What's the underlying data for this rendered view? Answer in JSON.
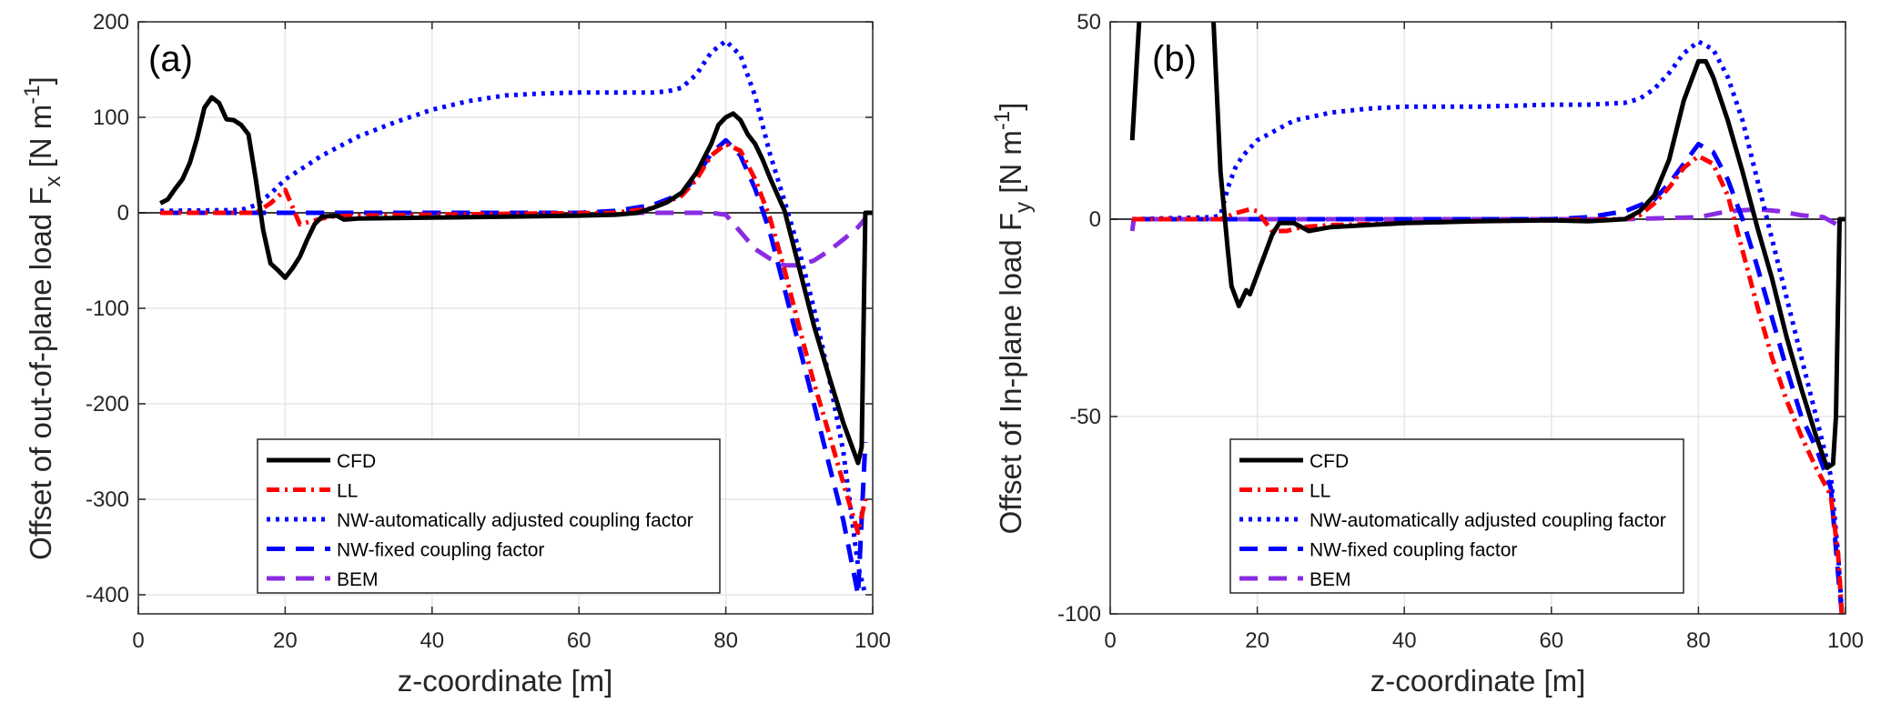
{
  "figure": {
    "panels": [
      "(a)",
      "(b)"
    ]
  },
  "chart_data": [
    {
      "type": "line",
      "panel_label": "(a)",
      "title": "",
      "xlabel": "z-coordinate [m]",
      "ylabel": "Offset of out-of-plane load F_x [N m^-1]",
      "ylabel_parts": {
        "main": "Offset of out-of-plane load F",
        "sub": "x",
        "unit_pre": " [N m",
        "sup": "-1",
        "unit_post": "]"
      },
      "xlim": [
        0,
        100
      ],
      "ylim": [
        -420,
        200
      ],
      "xticks": [
        0,
        20,
        40,
        60,
        80,
        100
      ],
      "yticks": [
        -400,
        -300,
        -200,
        -100,
        0,
        100,
        200
      ],
      "xtick_labels": [
        "0",
        "20",
        "40",
        "60",
        "80",
        "100"
      ],
      "ytick_labels": [
        "-400",
        "-300",
        "-200",
        "-100",
        "0",
        "100",
        "200"
      ],
      "grid": true,
      "zero_line": true,
      "legend_position": "bottom-center",
      "series": [
        {
          "name": "CFD",
          "color": "#000000",
          "style": "solid",
          "x": [
            3,
            4,
            5,
            6,
            7,
            8,
            9,
            10,
            11,
            12,
            13,
            14,
            15,
            16,
            17,
            18,
            19,
            20,
            21,
            22,
            23,
            24,
            25,
            27,
            28,
            30,
            40,
            50,
            60,
            65,
            68,
            70,
            72,
            74,
            76,
            78,
            79,
            80,
            81,
            82,
            83,
            84,
            85,
            86,
            88,
            90,
            92,
            94,
            96,
            98,
            98.5,
            99,
            100
          ],
          "y": [
            10,
            14,
            25,
            35,
            52,
            78,
            110,
            121,
            115,
            98,
            97,
            92,
            82,
            35,
            -18,
            -53,
            -60,
            -68,
            -58,
            -46,
            -28,
            -12,
            -4,
            -3,
            -7,
            -6,
            -5,
            -4,
            -3,
            -2,
            0,
            5,
            11,
            21,
            42,
            72,
            92,
            100,
            104,
            97,
            82,
            72,
            56,
            37,
            2,
            -58,
            -118,
            -170,
            -220,
            -262,
            -245,
            0,
            0
          ]
        },
        {
          "name": "LL",
          "color": "#ff0000",
          "style": "dashdot",
          "x": [
            3,
            16,
            18,
            20,
            22,
            24,
            26,
            30,
            50,
            65,
            70,
            74,
            76,
            78,
            80,
            82,
            84,
            86,
            88,
            90,
            92,
            94,
            96,
            98,
            99
          ],
          "y": [
            0,
            0,
            10,
            24,
            -12,
            -8,
            -4,
            -3,
            -1,
            0,
            5,
            18,
            35,
            60,
            72,
            65,
            35,
            -5,
            -60,
            -120,
            -178,
            -230,
            -283,
            -335,
            -300
          ]
        },
        {
          "name": "NW-automatically adjusted coupling factor",
          "color": "#0000ff",
          "style": "dotted",
          "x": [
            3,
            14,
            16,
            18,
            20,
            25,
            30,
            35,
            40,
            45,
            50,
            55,
            60,
            65,
            70,
            72,
            74,
            76,
            78,
            80,
            82,
            84,
            86,
            88,
            90,
            92,
            94,
            96,
            98,
            99
          ],
          "y": [
            2,
            3,
            8,
            20,
            35,
            60,
            80,
            95,
            108,
            117,
            123,
            125,
            126,
            126,
            126,
            127,
            131,
            145,
            168,
            180,
            165,
            122,
            62,
            12,
            -40,
            -100,
            -170,
            -250,
            -370,
            -400
          ]
        },
        {
          "name": "NW-fixed coupling factor",
          "color": "#0000ff",
          "style": "longdash",
          "x": [
            3,
            16,
            20,
            30,
            50,
            60,
            65,
            70,
            74,
            76,
            78,
            80,
            82,
            84,
            86,
            88,
            90,
            92,
            94,
            96,
            98,
            99
          ],
          "y": [
            0,
            0,
            0,
            0,
            0,
            0,
            2,
            8,
            20,
            38,
            62,
            76,
            60,
            25,
            -20,
            -80,
            -140,
            -200,
            -262,
            -322,
            -400,
            -240
          ]
        },
        {
          "name": "BEM",
          "color": "#8a2be2",
          "style": "longdash",
          "x": [
            3,
            78,
            80,
            82,
            84,
            86,
            88,
            90,
            92,
            94,
            96,
            98,
            99
          ],
          "y": [
            0,
            0,
            -2,
            -20,
            -38,
            -48,
            -55,
            -55,
            -50,
            -40,
            -28,
            -15,
            -6
          ]
        }
      ]
    },
    {
      "type": "line",
      "panel_label": "(b)",
      "title": "",
      "xlabel": "z-coordinate [m]",
      "ylabel": "Offset of In-plane load F_y [N m^-1]",
      "ylabel_parts": {
        "main": "Offset of In-plane load F",
        "sub": "y",
        "unit_pre": " [N m",
        "sup": "-1",
        "unit_post": "]"
      },
      "xlim": [
        0,
        100
      ],
      "ylim": [
        -100,
        50
      ],
      "xticks": [
        0,
        20,
        40,
        60,
        80,
        100
      ],
      "yticks": [
        -100,
        -50,
        0,
        50
      ],
      "xtick_labels": [
        "0",
        "20",
        "40",
        "60",
        "80",
        "100"
      ],
      "ytick_labels": [
        "-100",
        "-50",
        "0",
        "50"
      ],
      "grid": true,
      "zero_line": true,
      "legend_position": "bottom-center",
      "series": [
        {
          "name": "CFD",
          "color": "#000000",
          "style": "solid",
          "x": [
            3,
            4,
            5,
            13,
            14,
            15,
            16,
            16.5,
            17.5,
            18.5,
            19,
            20,
            21,
            22,
            23,
            25,
            27,
            30,
            40,
            50,
            60,
            65,
            70,
            72,
            74,
            76,
            78,
            80,
            81,
            82,
            84,
            86,
            88,
            90,
            92,
            94,
            96,
            97.5,
            98.3,
            98.7,
            99.2,
            100
          ],
          "y": [
            20,
            52,
            80,
            80,
            52,
            12,
            -8,
            -17,
            -22,
            -18,
            -19,
            -14,
            -9,
            -4,
            -1,
            -1,
            -3,
            -2,
            -1,
            -0.5,
            -0.3,
            -0.5,
            0,
            2,
            6,
            15,
            30,
            40,
            40,
            36,
            25,
            12,
            -2,
            -15,
            -30,
            -43,
            -55,
            -63,
            -62,
            -50,
            0,
            0
          ]
        },
        {
          "name": "LL",
          "color": "#ff0000",
          "style": "dashdot",
          "x": [
            3,
            15,
            17,
            19,
            20,
            22,
            24,
            26,
            30,
            50,
            70,
            72,
            74,
            76,
            78,
            80,
            82,
            84,
            86,
            88,
            90,
            92,
            94,
            96,
            98,
            99,
            99.5
          ],
          "y": [
            0,
            0,
            1.5,
            2.5,
            2,
            -3,
            -3,
            -2,
            -1.5,
            -0.5,
            0,
            1,
            4,
            8,
            13,
            16,
            14,
            6,
            -8,
            -22,
            -35,
            -46,
            -55,
            -63,
            -70,
            -85,
            -100
          ]
        },
        {
          "name": "NW-automatically adjusted coupling factor",
          "color": "#0000ff",
          "style": "dotted",
          "x": [
            3,
            14,
            15,
            16,
            17,
            18,
            20,
            25,
            30,
            35,
            40,
            50,
            60,
            65,
            70,
            72,
            74,
            76,
            78,
            80,
            82,
            84,
            86,
            88,
            90,
            92,
            94,
            96,
            98,
            99,
            99.5
          ],
          "y": [
            0,
            0.5,
            1,
            8,
            13,
            16,
            20,
            25,
            27,
            28,
            28.5,
            28.5,
            29,
            29,
            29.5,
            30.5,
            33,
            37,
            42,
            45,
            43,
            36,
            25,
            10,
            -5,
            -20,
            -35,
            -50,
            -65,
            -85,
            -100
          ]
        },
        {
          "name": "NW-fixed coupling factor",
          "color": "#0000ff",
          "style": "longdash",
          "x": [
            3,
            60,
            65,
            70,
            74,
            76,
            78,
            80,
            82,
            84,
            86,
            88,
            90,
            92,
            94,
            96,
            98,
            99,
            99.5
          ],
          "y": [
            0,
            0,
            0.5,
            2,
            5,
            9,
            14,
            19,
            17,
            10,
            0,
            -12,
            -25,
            -38,
            -50,
            -58,
            -68,
            -90,
            -100
          ]
        },
        {
          "name": "BEM",
          "color": "#8a2be2",
          "style": "longdash",
          "x": [
            3,
            3.2,
            70,
            80,
            84,
            88,
            91,
            94,
            97,
            99
          ],
          "y": [
            -3,
            0,
            0,
            0.5,
            2,
            2.5,
            2,
            1,
            0.5,
            -1.5
          ]
        }
      ]
    }
  ]
}
